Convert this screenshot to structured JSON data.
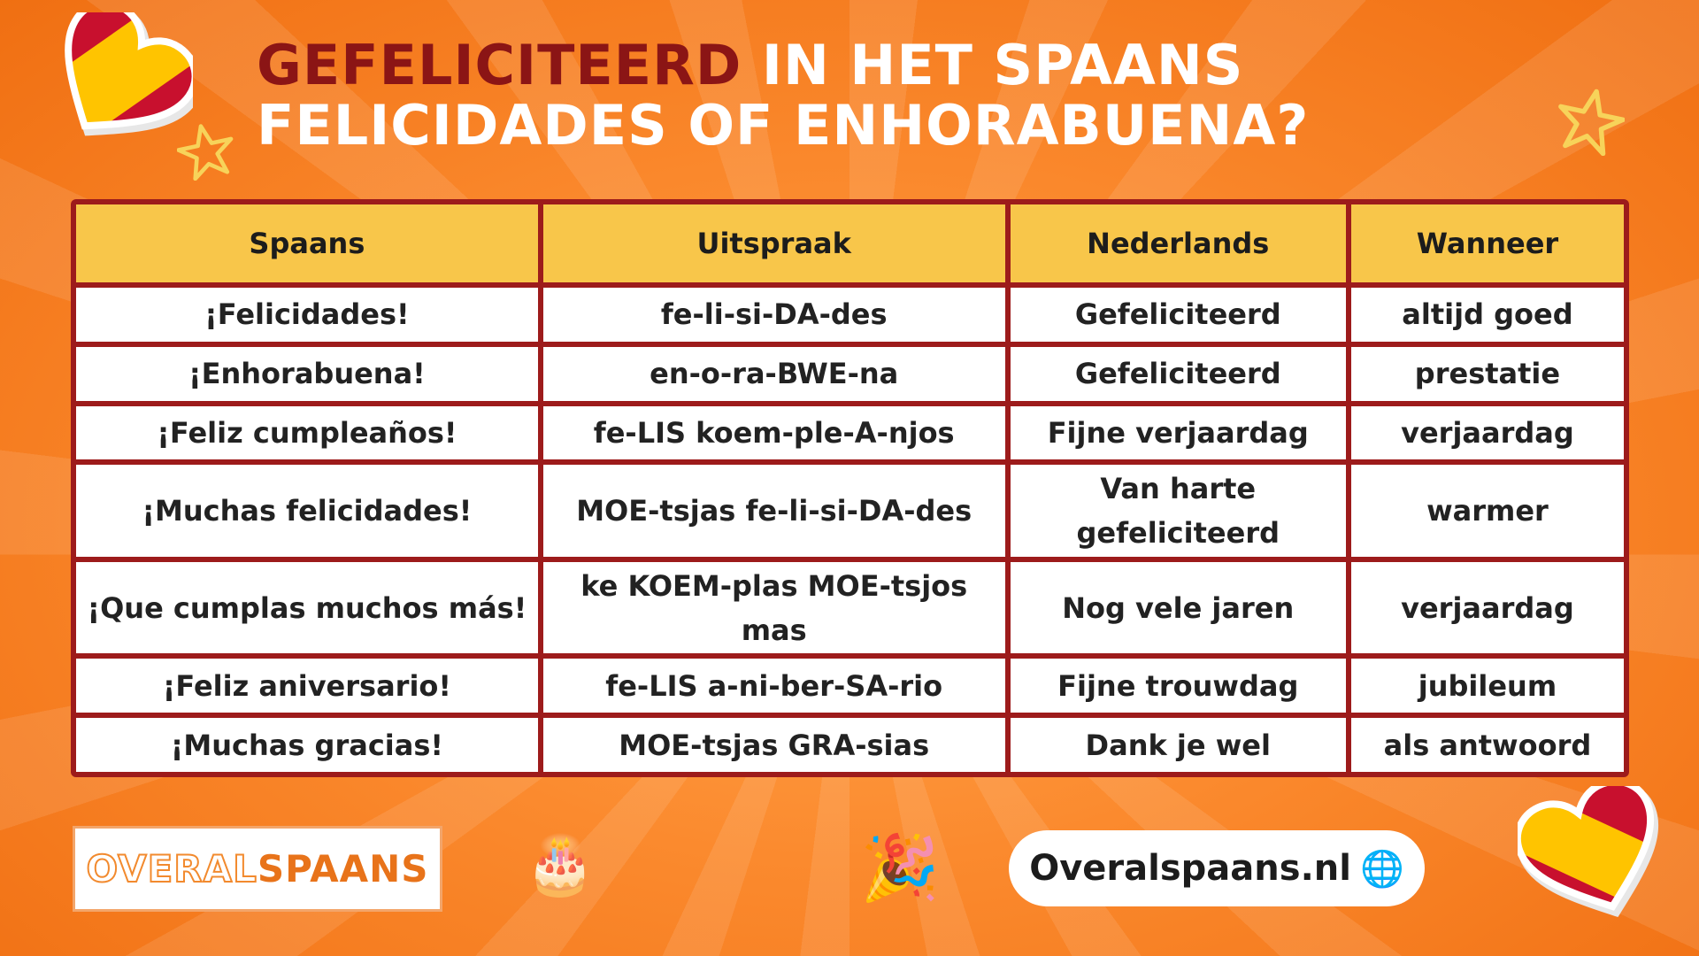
{
  "title": {
    "line1_dark": "GEFELICITEERD",
    "line1_light": "IN HET SPAANS",
    "line2": "FELICIDADES OF ENHORABUENA?"
  },
  "table": {
    "headers": [
      "Spaans",
      "Uitspraak",
      "Nederlands",
      "Wanneer"
    ],
    "rows": [
      [
        "¡Felicidades!",
        "fe-li-si-DA-des",
        "Gefeliciteerd",
        "altijd goed"
      ],
      [
        "¡Enhorabuena!",
        "en-o-ra-BWE-na",
        "Gefeliciteerd",
        "prestatie"
      ],
      [
        "¡Feliz cumpleaños!",
        "fe-LIS koem-ple-A-njos",
        "Fijne verjaardag",
        "verjaardag"
      ],
      [
        "¡Muchas felicidades!",
        "MOE-tsjas fe-li-si-DA-des",
        "Van harte gefeliciteerd",
        "warmer"
      ],
      [
        "¡Que cumplas muchos más!",
        "ke KOEM-plas MOE-tsjos mas",
        "Nog vele jaren",
        "verjaardag"
      ],
      [
        "¡Feliz aniversario!",
        "fe-LIS a-ni-ber-SA-rio",
        "Fijne trouwdag",
        "jubileum"
      ],
      [
        "¡Muchas gracias!",
        "MOE-tsjas GRA-sias",
        "Dank je wel",
        "als antwoord"
      ]
    ]
  },
  "footer": {
    "logo_part1": "OVERAL",
    "logo_part2": "SPAANS",
    "url": "Overalspaans.nl",
    "cake_emoji": "🎂",
    "party_emoji": "🎉",
    "globe_icon": "🌐"
  },
  "colors": {
    "background": "#fb8a2e",
    "table_border": "#9d1b1b",
    "header_fill": "#f8c64a",
    "title_dark": "#8b1515",
    "spain_red": "#c8102e",
    "spain_yellow": "#ffc400"
  }
}
